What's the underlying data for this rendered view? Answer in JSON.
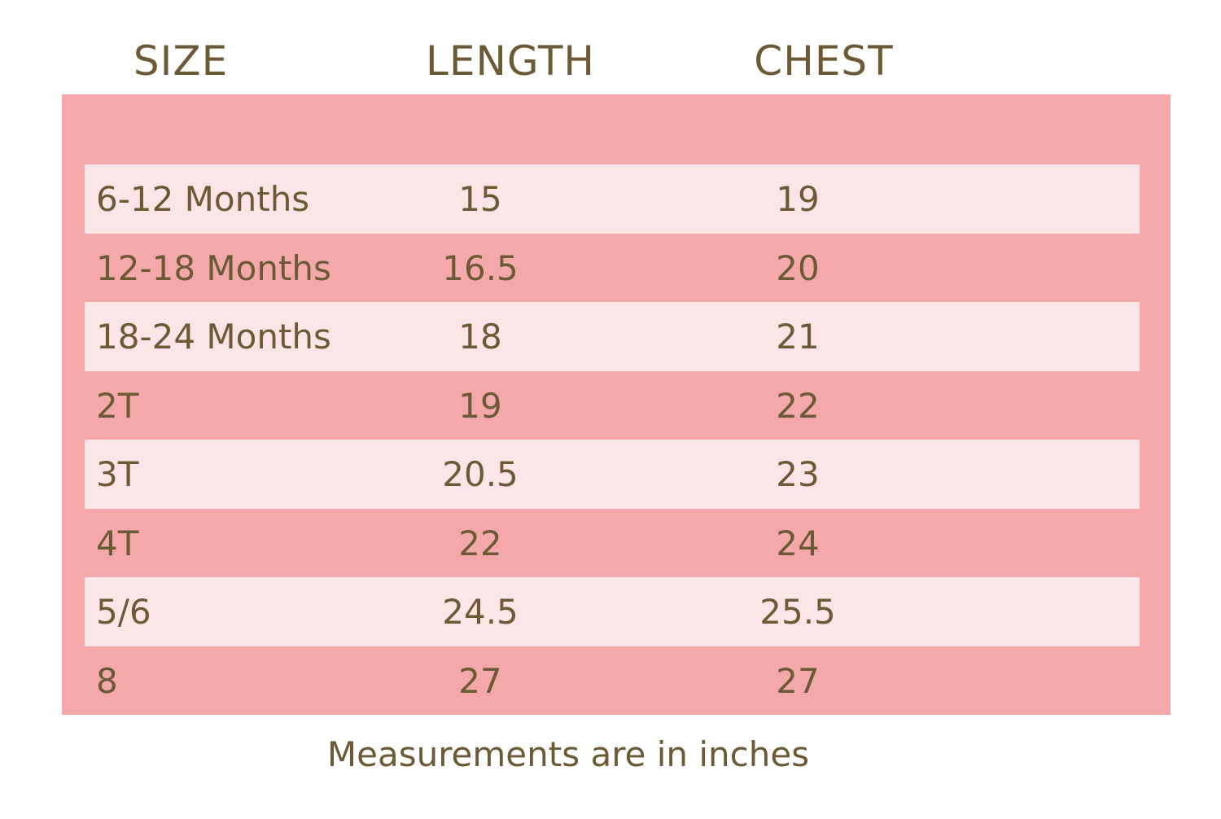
{
  "table": {
    "columns": [
      "SIZE",
      "LENGTH",
      "CHEST"
    ],
    "rows": [
      [
        "6-12 Months",
        15,
        19
      ],
      [
        "12-18 Months",
        16.5,
        20
      ],
      [
        "18-24 Months",
        18,
        21
      ],
      [
        "2T",
        19,
        22
      ],
      [
        "3T",
        20.5,
        23
      ],
      [
        "4T",
        22,
        24
      ],
      [
        "5/6",
        24.5,
        25.5
      ],
      [
        "8",
        27,
        27
      ]
    ]
  },
  "footnote": "Measurements are in inches"
}
